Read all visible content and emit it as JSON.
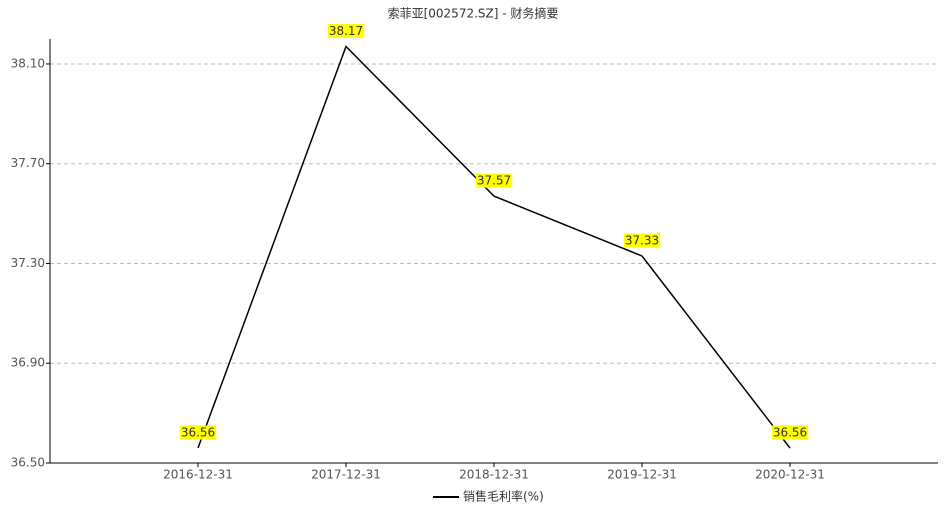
{
  "chart_data": {
    "type": "line",
    "title": "索菲亚[002572.SZ] - 财务摘要",
    "categories": [
      "2016-12-31",
      "2017-12-31",
      "2018-12-31",
      "2019-12-31",
      "2020-12-31"
    ],
    "series": [
      {
        "name": "销售毛利率(%)",
        "color": "#000000",
        "values": [
          36.56,
          38.17,
          37.57,
          37.33,
          36.56
        ]
      }
    ],
    "ylim": [
      36.5,
      38.2
    ],
    "yticks": [
      {
        "value": 36.5,
        "label": "36.50"
      },
      {
        "value": 36.9,
        "label": "36.90"
      },
      {
        "value": 37.3,
        "label": "37.30"
      },
      {
        "value": 37.7,
        "label": "37.70"
      },
      {
        "value": 38.1,
        "label": "38.10"
      }
    ],
    "grid": true,
    "legend": "bottom"
  }
}
